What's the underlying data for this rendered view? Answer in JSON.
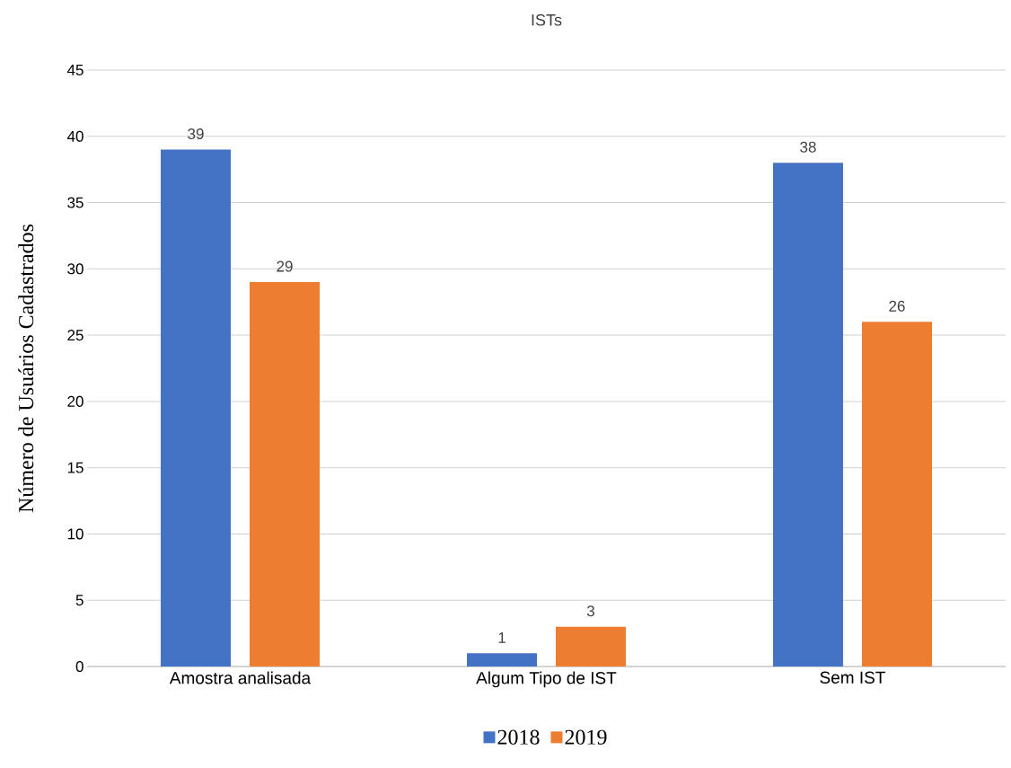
{
  "chart_data": {
    "type": "bar",
    "title": "ISTs",
    "ylabel": "Número de Usuários Cadastrados",
    "categories": [
      "Amostra analisada",
      "Algum Tipo de IST",
      "Sem IST"
    ],
    "series": [
      {
        "name": "2018",
        "color": "#4472c4",
        "values": [
          39,
          1,
          38
        ]
      },
      {
        "name": "2019",
        "color": "#ed7d31",
        "values": [
          29,
          3,
          26
        ]
      }
    ],
    "ylim": [
      0,
      45
    ],
    "yticks": [
      0,
      5,
      10,
      15,
      20,
      25,
      30,
      35,
      40,
      45
    ],
    "grid": "y",
    "legend": "bottom",
    "data_labels": true
  }
}
